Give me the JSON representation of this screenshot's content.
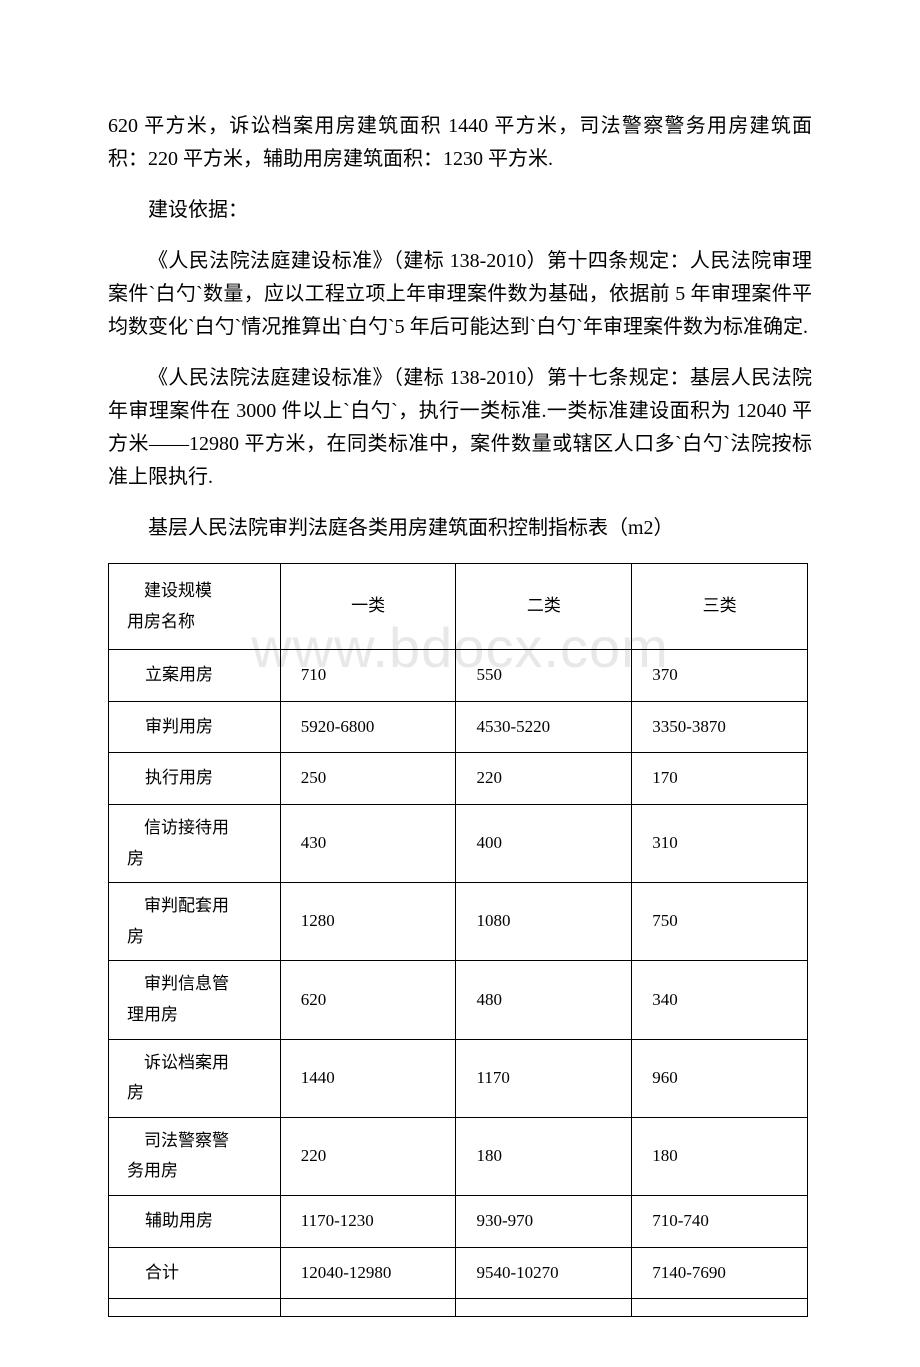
{
  "watermark": "www.bdocx.com",
  "paragraphs": {
    "p1": "620 平方米，诉讼档案用房建筑面积 1440 平方米，司法警察警务用房建筑面积：220 平方米，辅助用房建筑面积：1230 平方米.",
    "p2": "建设依据：",
    "p3": "《人民法院法庭建设标准》（建标 138-2010）第十四条规定：人民法院审理案件`白勺`数量，应以工程立项上年审理案件数为基础，依据前 5 年审理案件平均数变化`白勺`情况推算出`白勺`5 年后可能达到`白勺`年审理案件数为标准确定.",
    "p4": "《人民法院法庭建设标准》（建标 138-2010）第十七条规定：基层人民法院年审理案件在 3000 件以上`白勺`，执行一类标准.一类标准建设面积为 12040 平方米——12980 平方米，在同类标准中，案件数量或辖区人口多`白勺`法院按标准上限执行.",
    "p5": "基层人民法院审判法庭各类用房建筑面积控制指标表（m2）"
  },
  "table": {
    "header": {
      "line1": "建设规模",
      "line2": "用房名称",
      "col2": "一类",
      "col3": "二类",
      "col4": "三类"
    },
    "rows": [
      {
        "name": "立案用房",
        "c1": "710",
        "c2": "550",
        "c3": "370"
      },
      {
        "name": "审判用房",
        "c1": "5920-6800",
        "c2": "4530-5220",
        "c3": "3350-3870"
      },
      {
        "name": "执行用房",
        "c1": "250",
        "c2": "220",
        "c3": "170"
      },
      {
        "name": "信访接待用房",
        "c1": "430",
        "c2": "400",
        "c3": "310",
        "multi": true
      },
      {
        "name": "审判配套用房",
        "c1": "1280",
        "c2": "1080",
        "c3": "750",
        "multi": true
      },
      {
        "name": "审判信息管理用房",
        "c1": "620",
        "c2": "480",
        "c3": "340",
        "multi": true
      },
      {
        "name": "诉讼档案用房",
        "c1": "1440",
        "c2": "1170",
        "c3": "960",
        "multi": true
      },
      {
        "name": "司法警察警务用房",
        "c1": "220",
        "c2": "180",
        "c3": "180",
        "multi": true
      },
      {
        "name": "辅助用房",
        "c1": "1170-1230",
        "c2": "930-970",
        "c3": "710-740"
      },
      {
        "name": "合计",
        "c1": "12040-12980",
        "c2": "9540-10270",
        "c3": "7140-7690"
      }
    ]
  }
}
